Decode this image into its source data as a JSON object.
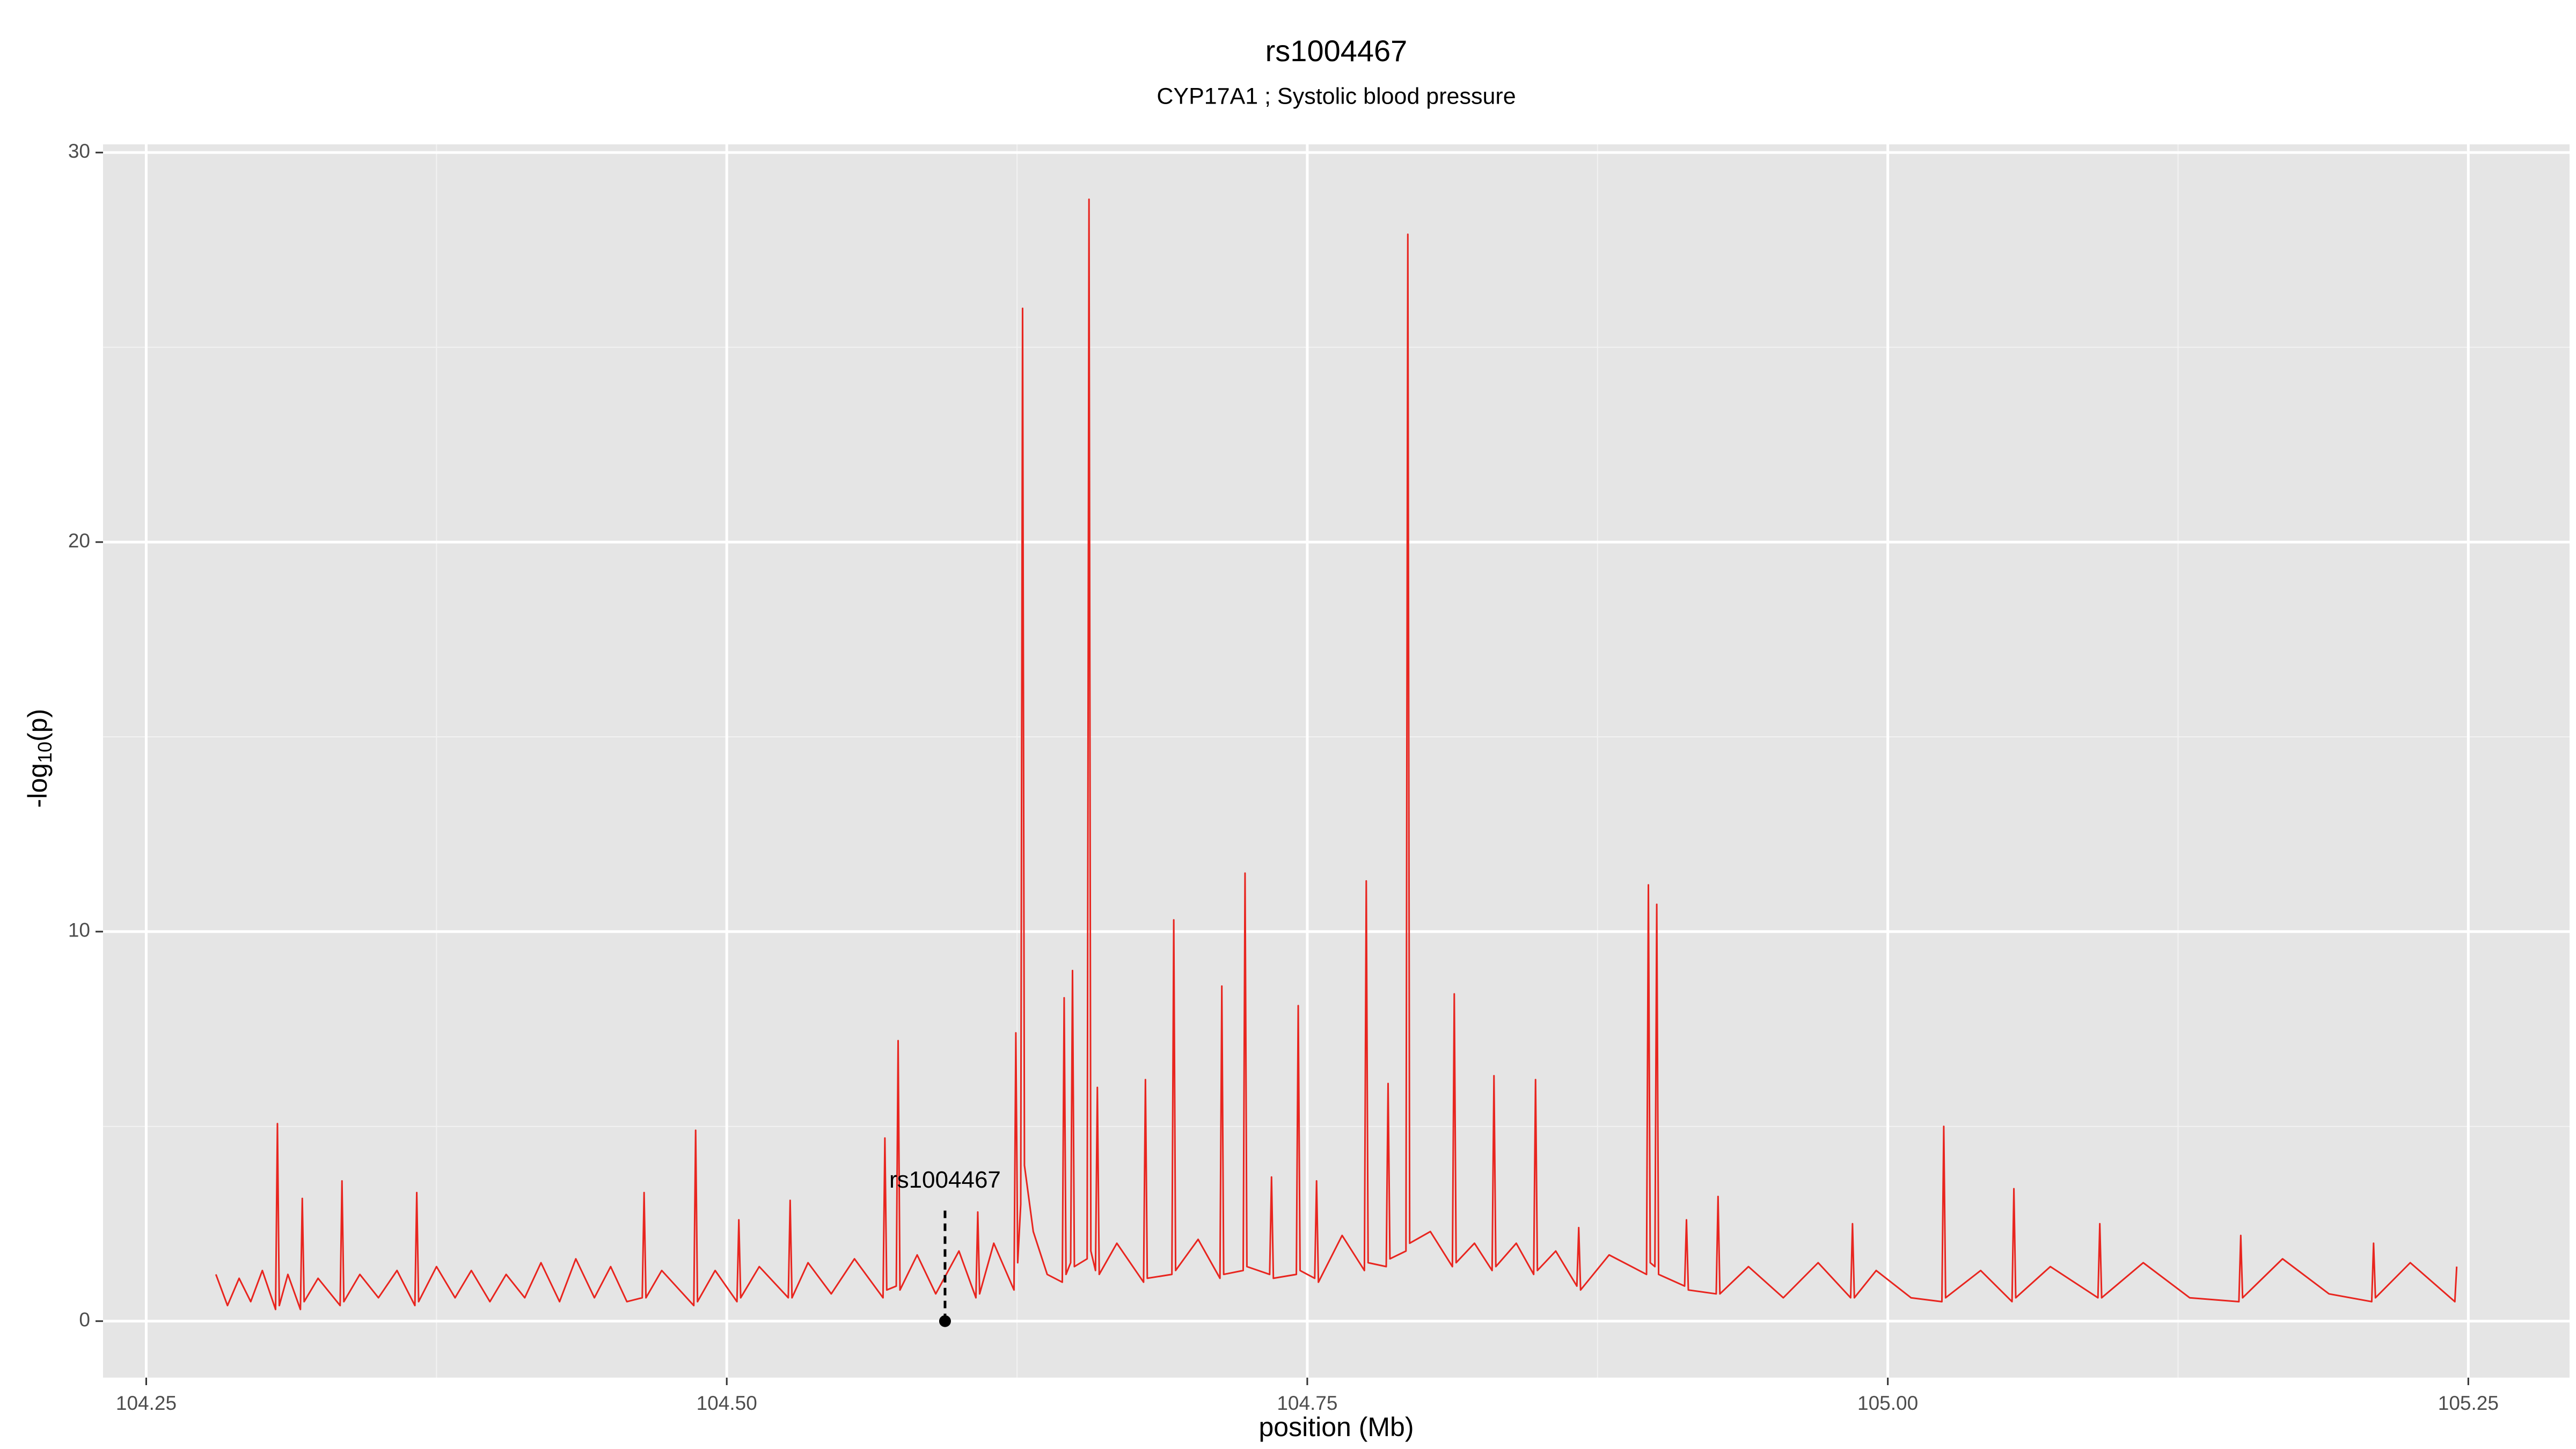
{
  "chart_data": {
    "type": "line",
    "title": "rs1004467",
    "subtitle": "CYP17A1 ; Systolic blood pressure",
    "xlabel": "position (Mb)",
    "ylabel": {
      "main": "-log",
      "sub": "10",
      "tail": "(p)"
    },
    "xlim": [
      104.2314,
      105.2936
    ],
    "ylim": [
      -1.45,
      30.21
    ],
    "xticks": [
      104.25,
      {
        "value": 104.5,
        "label": "104.50"
      },
      104.75,
      {
        "value": 105,
        "label": "105.00"
      },
      105.25
    ],
    "yticks": [
      0,
      10,
      20,
      30
    ],
    "xminor": [
      104.375,
      104.625,
      104.875,
      105.125
    ],
    "yminor": [
      5,
      15,
      25
    ],
    "grid": true,
    "x": [
      104.28,
      104.285,
      104.29,
      104.295,
      104.3,
      104.3057,
      104.3065,
      104.3073,
      104.311,
      104.3164,
      104.3172,
      104.318,
      104.324,
      104.3335,
      104.3343,
      104.3351,
      104.342,
      104.35,
      104.358,
      104.3657,
      104.3665,
      104.3673,
      104.375,
      104.383,
      104.39,
      104.398,
      104.405,
      104.413,
      104.42,
      104.428,
      104.435,
      104.443,
      104.45,
      104.457,
      104.4636,
      104.4644,
      104.4652,
      104.472,
      104.4858,
      104.4866,
      104.4874,
      104.495,
      104.5044,
      104.5052,
      104.506,
      104.514,
      104.5265,
      104.5273,
      104.5281,
      104.535,
      104.545,
      104.555,
      104.5673,
      104.5681,
      104.5689,
      104.573,
      104.5738,
      104.5746,
      104.582,
      104.59,
      104.6,
      104.6073,
      104.6081,
      104.6089,
      104.615,
      104.6237,
      104.6245,
      104.6253,
      104.6266,
      104.6274,
      104.6282,
      104.632,
      104.638,
      104.6445,
      104.6453,
      104.6461,
      104.6481,
      104.6489,
      104.6497,
      104.6552,
      104.656,
      104.6568,
      104.6588,
      104.6596,
      104.6604,
      104.668,
      104.6795,
      104.6803,
      104.6811,
      104.6917,
      104.6925,
      104.6933,
      104.703,
      104.7124,
      104.7132,
      104.714,
      104.7224,
      104.7232,
      104.724,
      104.7338,
      104.7346,
      104.7354,
      104.7453,
      104.7461,
      104.7469,
      104.7532,
      104.754,
      104.7548,
      104.765,
      104.7746,
      104.7754,
      104.7762,
      104.784,
      104.7848,
      104.7856,
      104.7925,
      104.7933,
      104.7941,
      104.803,
      104.8125,
      104.8133,
      104.8141,
      104.822,
      104.8296,
      104.8304,
      104.8312,
      104.84,
      104.8475,
      104.8483,
      104.8491,
      104.857,
      104.8661,
      104.8669,
      104.8677,
      104.88,
      104.8961,
      104.8969,
      104.8977,
      104.8997,
      104.9005,
      104.9013,
      104.9125,
      104.9133,
      104.9141,
      104.9261,
      104.9269,
      104.9277,
      104.94,
      104.955,
      104.97,
      104.984,
      104.9848,
      104.9856,
      104.995,
      105.01,
      105.0233,
      105.0241,
      105.0249,
      105.04,
      105.0535,
      105.0543,
      105.0551,
      105.07,
      105.0905,
      105.0913,
      105.0921,
      105.11,
      105.13,
      105.1512,
      105.152,
      105.1528,
      105.17,
      105.19,
      105.2084,
      105.2092,
      105.21,
      105.225,
      105.2442,
      105.245
    ],
    "series": [
      {
        "color": "#e8251f",
        "values": [
          1.2,
          0.4,
          1.1,
          0.5,
          1.3,
          0.3,
          5.07,
          0.4,
          1.2,
          0.3,
          3.15,
          0.5,
          1.1,
          0.4,
          3.6,
          0.5,
          1.2,
          0.6,
          1.3,
          0.4,
          3.3,
          0.5,
          1.4,
          0.6,
          1.3,
          0.5,
          1.2,
          0.6,
          1.5,
          0.5,
          1.6,
          0.6,
          1.4,
          0.5,
          0.6,
          3.3,
          0.6,
          1.3,
          0.4,
          4.9,
          0.5,
          1.3,
          0.5,
          2.6,
          0.6,
          1.4,
          0.6,
          3.1,
          0.6,
          1.5,
          0.7,
          1.6,
          0.6,
          4.7,
          0.8,
          0.9,
          7.2,
          0.8,
          1.7,
          0.7,
          1.8,
          0.6,
          2.8,
          0.7,
          2.0,
          0.8,
          7.4,
          1.5,
          3.0,
          26.0,
          4.0,
          2.3,
          1.2,
          1.0,
          8.3,
          1.2,
          1.5,
          9.0,
          1.4,
          1.6,
          28.8,
          1.8,
          1.3,
          6.0,
          1.2,
          2.0,
          1.0,
          6.2,
          1.1,
          1.2,
          10.3,
          1.3,
          2.1,
          1.1,
          8.6,
          1.2,
          1.3,
          11.5,
          1.4,
          1.2,
          3.7,
          1.1,
          1.2,
          8.1,
          1.3,
          1.1,
          3.6,
          1.0,
          2.2,
          1.3,
          11.3,
          1.5,
          1.4,
          6.1,
          1.6,
          1.8,
          27.9,
          2.0,
          2.3,
          1.4,
          8.4,
          1.5,
          2.0,
          1.3,
          6.3,
          1.4,
          2.0,
          1.2,
          6.2,
          1.3,
          1.8,
          0.9,
          2.4,
          0.8,
          1.7,
          1.2,
          11.2,
          1.5,
          1.4,
          10.7,
          1.2,
          0.9,
          2.6,
          0.8,
          0.7,
          3.2,
          0.7,
          1.4,
          0.6,
          1.5,
          0.6,
          2.5,
          0.6,
          1.3,
          0.6,
          0.5,
          5.0,
          0.6,
          1.3,
          0.5,
          3.4,
          0.6,
          1.4,
          0.6,
          2.5,
          0.6,
          1.5,
          0.6,
          0.5,
          2.2,
          0.6,
          1.6,
          0.7,
          0.5,
          2.0,
          0.6,
          1.5,
          0.5,
          1.4
        ]
      }
    ],
    "annotation": {
      "text": "rs1004467",
      "x": 104.594,
      "y": 0,
      "line_top": 2.9
    }
  }
}
